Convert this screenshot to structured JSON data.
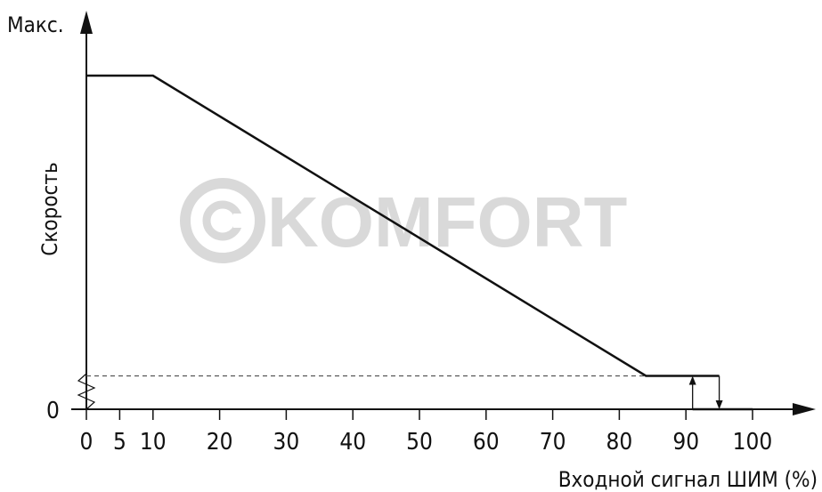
{
  "watermark": "©KOMFORT",
  "chart_data": {
    "type": "line",
    "ylabel": "Скорость",
    "xlabel": "Входной сигнал ШИМ (%)",
    "y_max_label": "Макс.",
    "y_zero_label": "0",
    "xlim": [
      0,
      100
    ],
    "x_ticks": [
      0,
      5,
      10,
      20,
      30,
      40,
      50,
      60,
      70,
      80,
      90,
      100
    ],
    "x_tick_labels": [
      "0",
      "5",
      "10",
      "20",
      "30",
      "40",
      "50",
      "60",
      "70",
      "80",
      "90",
      "100"
    ],
    "ylim": [
      0,
      1
    ],
    "series": [
      {
        "points": [
          [
            0,
            1.0
          ],
          [
            10,
            1.0
          ],
          [
            84,
            0.1
          ],
          [
            95,
            0.1
          ]
        ],
        "style": "solid"
      },
      {
        "points": [
          [
            91,
            0
          ],
          [
            100,
            0
          ]
        ],
        "style": "solid"
      }
    ],
    "min_speed_level": 0.1,
    "hysteresis": {
      "switch_on": 91,
      "switch_off": 95
    },
    "grid": false,
    "colors": {
      "line": "#111111",
      "watermark": "#d9d9d9",
      "dashed": "#555555"
    }
  }
}
